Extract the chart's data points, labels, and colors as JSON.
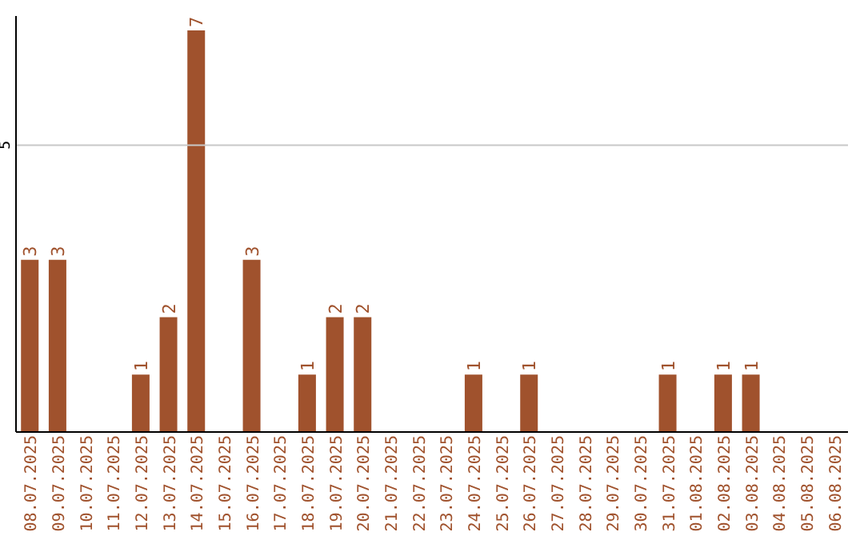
{
  "chart_data": {
    "type": "bar",
    "categories": [
      "08.07.2025",
      "09.07.2025",
      "10.07.2025",
      "11.07.2025",
      "12.07.2025",
      "13.07.2025",
      "14.07.2025",
      "15.07.2025",
      "16.07.2025",
      "17.07.2025",
      "18.07.2025",
      "19.07.2025",
      "20.07.2025",
      "21.07.2025",
      "22.07.2025",
      "23.07.2025",
      "24.07.2025",
      "25.07.2025",
      "26.07.2025",
      "27.07.2025",
      "28.07.2025",
      "29.07.2025",
      "30.07.2025",
      "31.07.2025",
      "01.08.2025",
      "02.08.2025",
      "03.08.2025",
      "04.08.2025",
      "05.08.2025",
      "06.08.2025"
    ],
    "values": [
      3,
      3,
      0,
      0,
      1,
      2,
      7,
      0,
      3,
      0,
      1,
      2,
      2,
      0,
      0,
      0,
      1,
      0,
      1,
      0,
      0,
      0,
      0,
      1,
      0,
      1,
      1,
      0,
      0,
      0
    ],
    "value_labels": [
      "3",
      "3",
      null,
      null,
      "1",
      "2",
      "7",
      null,
      "3",
      null,
      "1",
      "2",
      "2",
      null,
      null,
      null,
      "1",
      null,
      "1",
      null,
      null,
      null,
      null,
      "1",
      null,
      "1",
      "1",
      null,
      null,
      null
    ],
    "color": "#a0522d",
    "ylim": [
      0,
      7.25
    ],
    "legend": false,
    "ref_lines": [
      {
        "axis": "y",
        "value": 5,
        "label": "5",
        "color": "#c8c8c8"
      }
    ]
  }
}
